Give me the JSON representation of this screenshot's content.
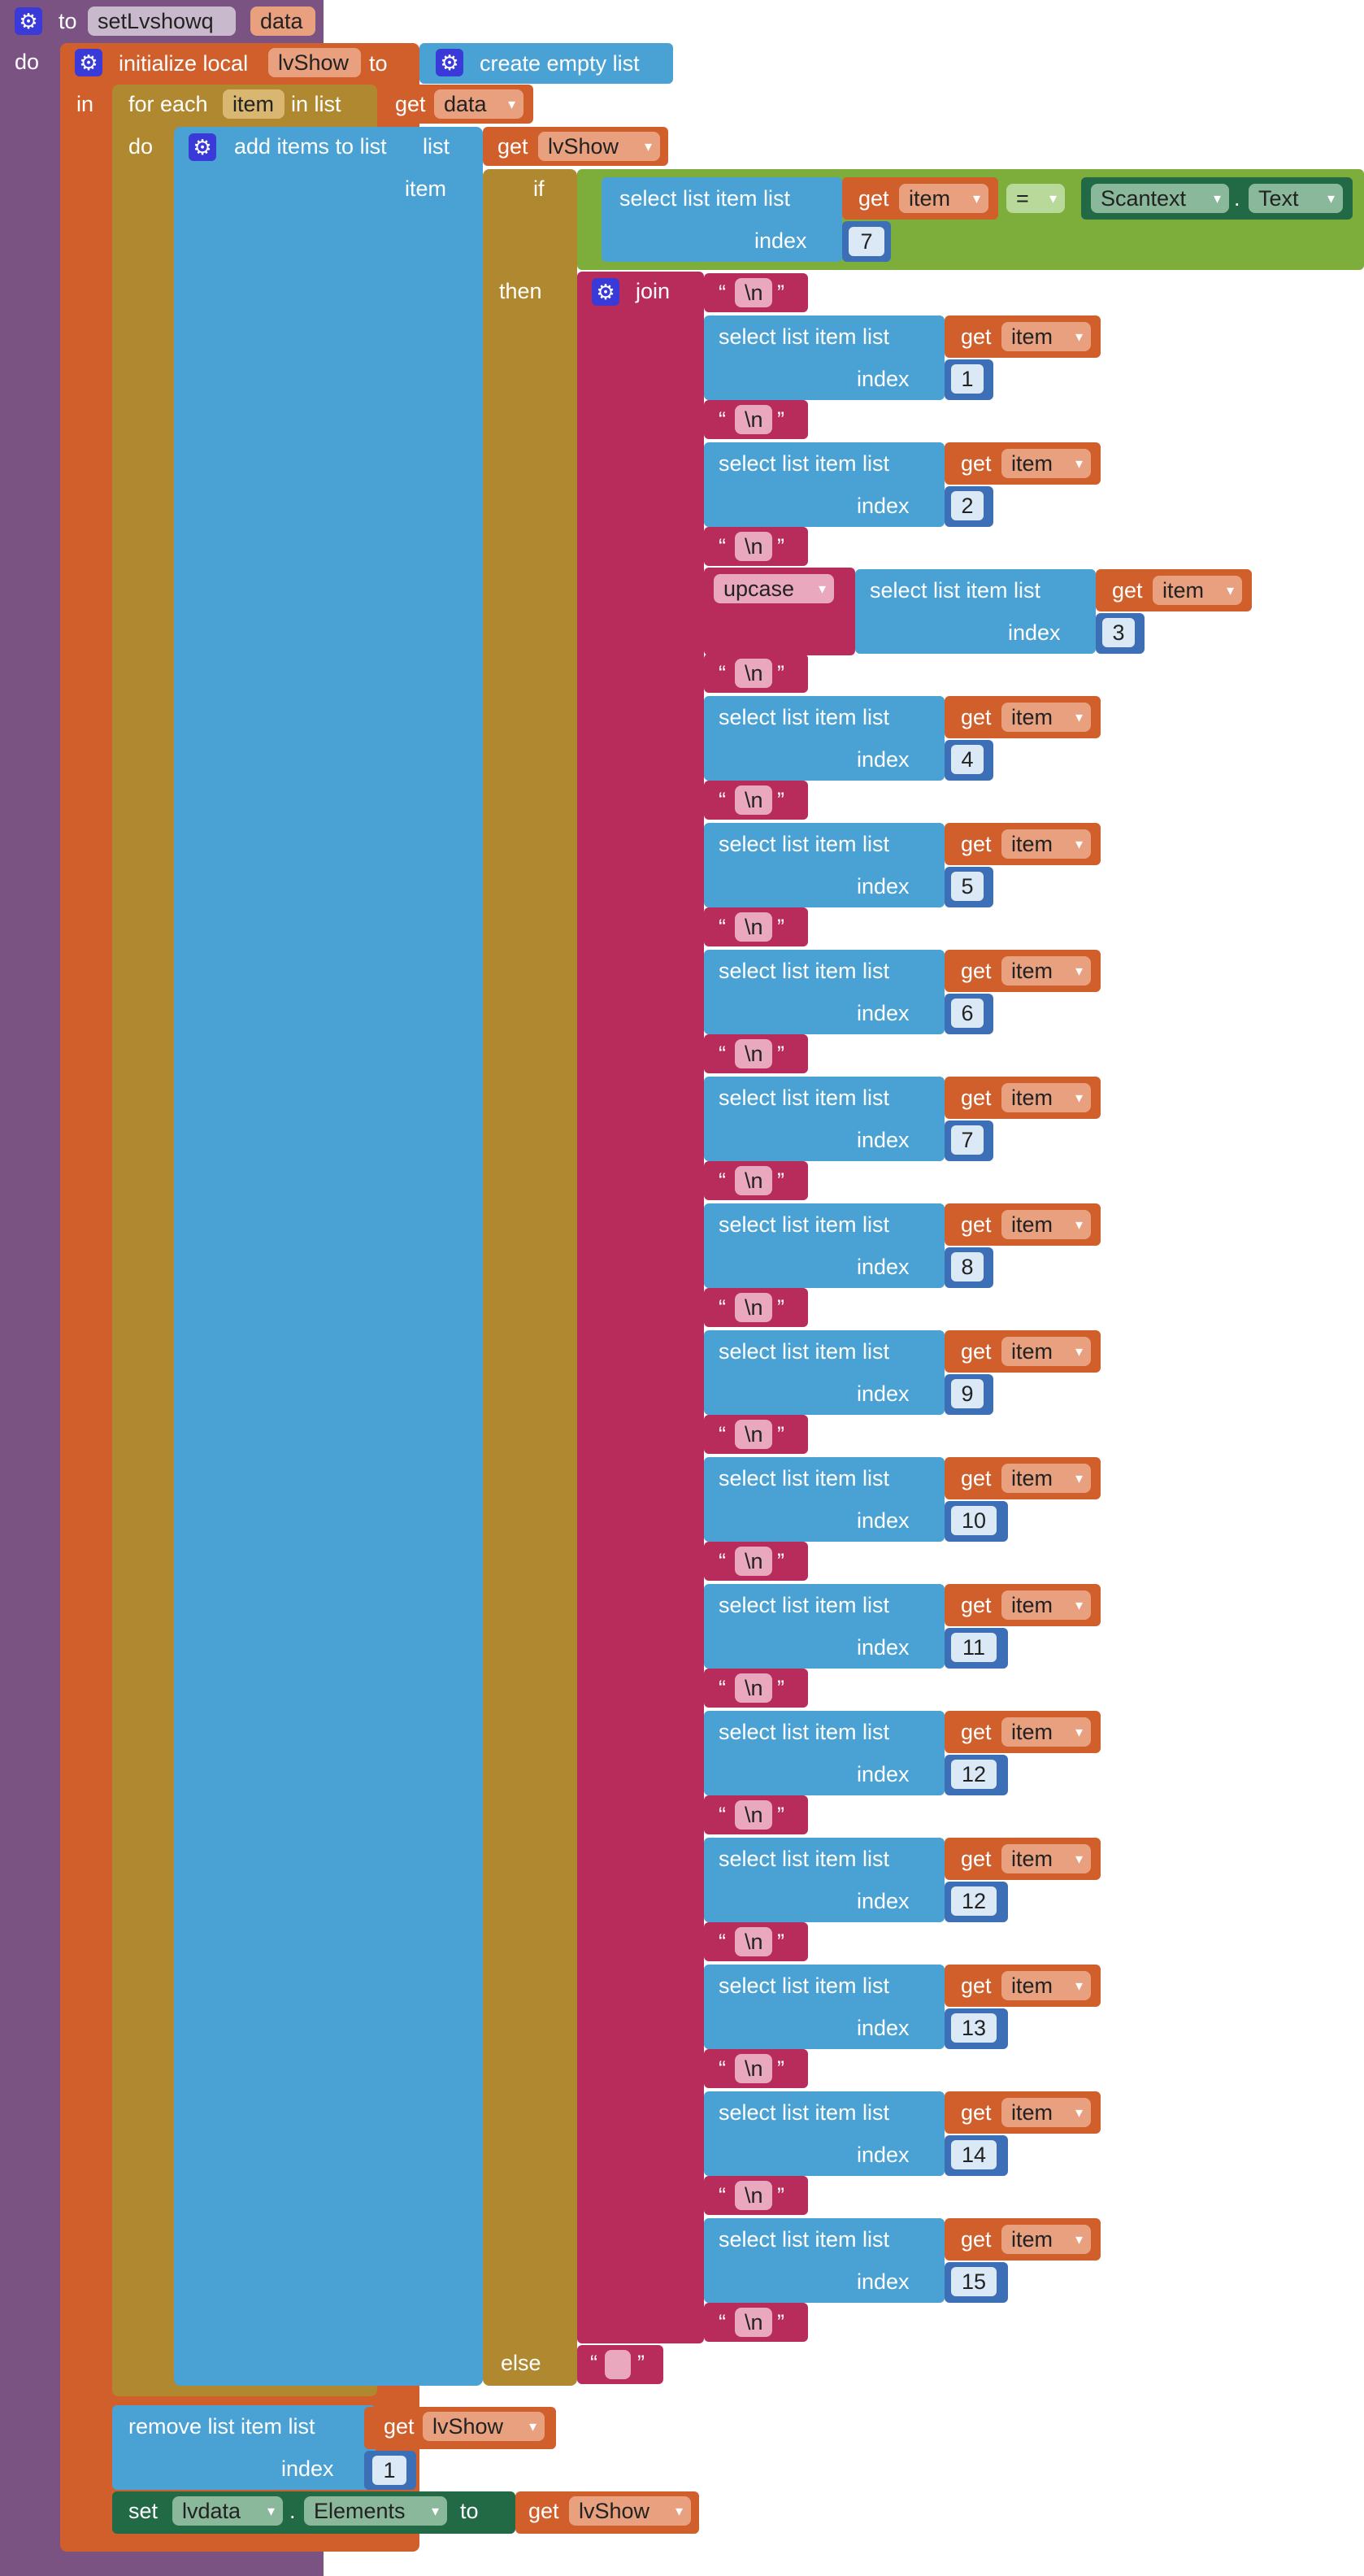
{
  "procedure": {
    "to": "to",
    "name": "setLvshowq",
    "param": "data",
    "do": "do"
  },
  "init_local": {
    "label": "initialize local",
    "var": "lvShow",
    "to": "to",
    "in": "in",
    "value_label": "create empty list"
  },
  "for_each": {
    "label": "for each",
    "var": "item",
    "in_list": "in list",
    "get": "get",
    "list_var": "data",
    "do": "do"
  },
  "add_items": {
    "label": "add items to list",
    "list": "list",
    "get": "get",
    "list_var": "lvShow",
    "item": "item"
  },
  "if_block": {
    "if": "if",
    "then": "then",
    "else": "else"
  },
  "condition": {
    "select": "select list item  list",
    "get": "get",
    "var": "item",
    "index_label": "index",
    "index": "7",
    "op": "=",
    "component": "Scantext",
    "prop": "Text",
    "dot": "."
  },
  "join": {
    "label": "join",
    "newline": "\\n",
    "else_text": ""
  },
  "upcase": {
    "label": "upcase"
  },
  "select_rows": [
    {
      "label": "select list item  list",
      "get": "get",
      "var": "item",
      "index_label": "index",
      "index": "1"
    },
    {
      "label": "select list item  list",
      "get": "get",
      "var": "item",
      "index_label": "index",
      "index": "2"
    },
    {
      "label": "select list item  list",
      "get": "get",
      "var": "item",
      "index_label": "index",
      "index": "3"
    },
    {
      "label": "select list item  list",
      "get": "get",
      "var": "item",
      "index_label": "index",
      "index": "4"
    },
    {
      "label": "select list item  list",
      "get": "get",
      "var": "item",
      "index_label": "index",
      "index": "5"
    },
    {
      "label": "select list item  list",
      "get": "get",
      "var": "item",
      "index_label": "index",
      "index": "6"
    },
    {
      "label": "select list item  list",
      "get": "get",
      "var": "item",
      "index_label": "index",
      "index": "7"
    },
    {
      "label": "select list item  list",
      "get": "get",
      "var": "item",
      "index_label": "index",
      "index": "8"
    },
    {
      "label": "select list item  list",
      "get": "get",
      "var": "item",
      "index_label": "index",
      "index": "9"
    },
    {
      "label": "select list item  list",
      "get": "get",
      "var": "item",
      "index_label": "index",
      "index": "10"
    },
    {
      "label": "select list item  list",
      "get": "get",
      "var": "item",
      "index_label": "index",
      "index": "11"
    },
    {
      "label": "select list item  list",
      "get": "get",
      "var": "item",
      "index_label": "index",
      "index": "12"
    },
    {
      "label": "select list item  list",
      "get": "get",
      "var": "item",
      "index_label": "index",
      "index": "12"
    },
    {
      "label": "select list item  list",
      "get": "get",
      "var": "item",
      "index_label": "index",
      "index": "13"
    },
    {
      "label": "select list item  list",
      "get": "get",
      "var": "item",
      "index_label": "index",
      "index": "14"
    },
    {
      "label": "select list item  list",
      "get": "get",
      "var": "item",
      "index_label": "index",
      "index": "15"
    }
  ],
  "remove": {
    "label": "remove list item  list",
    "get": "get",
    "var": "lvShow",
    "index_label": "index",
    "index": "1"
  },
  "set": {
    "label": "set",
    "component": "lvdata",
    "dot": ".",
    "prop": "Elements",
    "to": "to",
    "get": "get",
    "var": "lvShow"
  },
  "colors": {
    "procedure": "#7b5383",
    "variables": "#d15f2c",
    "control": "#b0882f",
    "lists": "#4aa1d3",
    "logic": "#7dad3a",
    "text": "#b72c5b",
    "components": "#226a45",
    "math": "#3d6fb6"
  }
}
